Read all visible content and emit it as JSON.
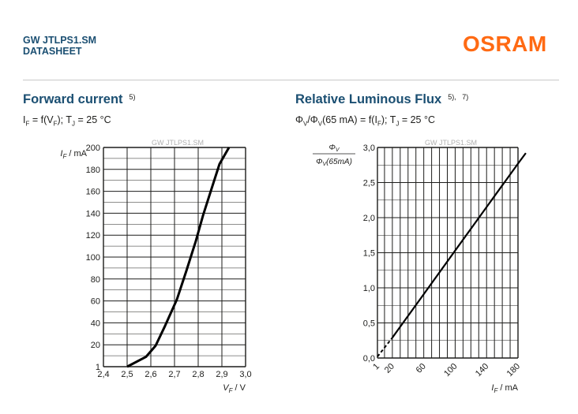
{
  "header": {
    "product": "GW JTLPS1.SM",
    "doc_type": "DATASHEET",
    "logo": "OSRAM",
    "logo_color": "#ff6a13",
    "title_color": "#1b4f72"
  },
  "chart_data": [
    {
      "type": "line",
      "title": "Forward current",
      "title_note": "5)",
      "formula": {
        "a": "I",
        "a_sub": "F",
        "b": " = f(V",
        "b_sub": "F",
        "c": "); T",
        "c_sub": "J",
        "d": " = 25 °C"
      },
      "watermark": "GW JTLPS1.SM",
      "ylabel": {
        "sym": "I",
        "sub": "F",
        "unit": " / mA"
      },
      "xlabel": {
        "sym": "V",
        "sub": "F",
        "unit": " / V"
      },
      "xlim": [
        2.4,
        3.0
      ],
      "ylim": [
        1,
        200
      ],
      "x_ticks": [
        2.4,
        2.5,
        2.6,
        2.7,
        2.8,
        2.9,
        3.0
      ],
      "x_tick_labels": [
        "2,4",
        "2,5",
        "2,6",
        "2,7",
        "2,8",
        "2,9",
        "3,0"
      ],
      "y_tick_labels": [
        "1",
        "20",
        "40",
        "60",
        "80",
        "100",
        "120",
        "140",
        "160",
        "180",
        "200"
      ],
      "grid": true,
      "series": [
        {
          "x": [
            2.5,
            2.58,
            2.62,
            2.66,
            2.71,
            2.75,
            2.79,
            2.82,
            2.86,
            2.89,
            2.93
          ],
          "y": [
            1,
            10,
            20,
            38,
            62,
            88,
            115,
            138,
            165,
            185,
            200
          ]
        }
      ]
    },
    {
      "type": "line",
      "title": "Relative Luminous Flux",
      "title_note": "5),   7)",
      "formula": {
        "a": "Φ",
        "a_sub": "V",
        "b": "/Φ",
        "b_sub": "V",
        "c": "(65 mA) = f(I",
        "c_sub": "F",
        "d": "); T",
        "d_sub": "J",
        "e": " = 25 °C"
      },
      "watermark": "GW JTLPS1.SM",
      "ylabel": {
        "num": "ΦV",
        "den": "ΦV(65mA)"
      },
      "xlabel": {
        "sym": "I",
        "sub": "F",
        "unit": " / mA"
      },
      "xlim": [
        1,
        180
      ],
      "ylim": [
        0,
        3.0
      ],
      "x_ticks": [
        1,
        20,
        60,
        100,
        140,
        180
      ],
      "x_tick_labels": [
        "1",
        "20",
        "60",
        "100",
        "140",
        "180"
      ],
      "y_ticks": [
        0,
        0.5,
        1.0,
        1.5,
        2.0,
        2.5,
        3.0
      ],
      "y_tick_labels": [
        "0,0",
        "0,5",
        "1,0",
        "1,5",
        "2,0",
        "2,5",
        "3,0"
      ],
      "grid": true,
      "series": [
        {
          "x": [
            1,
            10,
            20,
            60,
            100,
            140,
            180,
            190
          ],
          "y": [
            0.02,
            0.15,
            0.29,
            0.91,
            1.53,
            2.15,
            2.77,
            2.92
          ]
        }
      ]
    }
  ]
}
